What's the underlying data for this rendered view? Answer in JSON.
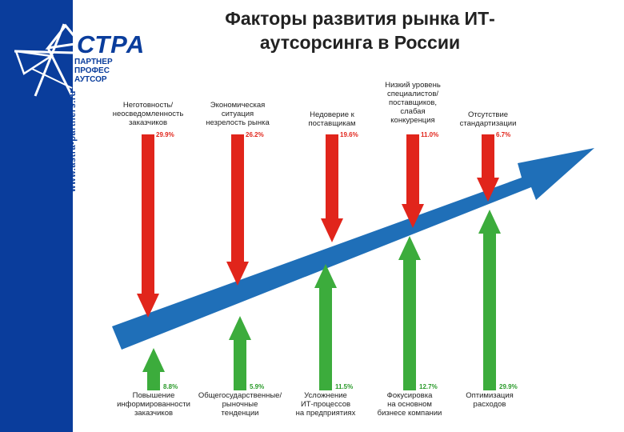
{
  "title": "Факторы развития рынка ИТ-аутсорсинга в России",
  "logo": {
    "name": "СТРА",
    "lines": [
      "ПАРТНЕР",
      "ПРОФЕС",
      "АУТСОР"
    ],
    "url": "www.astra-partners.ru"
  },
  "colors": {
    "sidebar": "#0a3d9c",
    "main_arrow": "#1f6fb8",
    "negative": "#e1251b",
    "positive": "#3cac3c"
  },
  "negative_factors": [
    {
      "label": "Неготовность/\nнеосведомленность\nзаказчиков",
      "value": "29.9%"
    },
    {
      "label": "Экономическая\nситуация\nнезрелость рынка",
      "value": "26.2%"
    },
    {
      "label": "Недоверие к\nпоставщикам",
      "value": "19.6%"
    },
    {
      "label": "Низкий уровень\nспециалистов/\nпоставщиков,\nслабая\nконкуренция",
      "value": "11.0%"
    },
    {
      "label": "Отсутствие\nстандартизации",
      "value": "6.7%"
    }
  ],
  "positive_factors": [
    {
      "label": "Повышение\nинформированности\nзаказчиков",
      "value": "8.8%"
    },
    {
      "label": "Общегосударственные/\nрыночные\nтенденции",
      "value": "5.9%"
    },
    {
      "label": "Усложнение\nИТ-процессов\nна предприятиях",
      "value": "11.5%"
    },
    {
      "label": "Фокусировка\nна основном\nбизнесе компании",
      "value": "12.7%"
    },
    {
      "label": "Оптимизация\nрасходов",
      "value": "29.9%"
    }
  ]
}
